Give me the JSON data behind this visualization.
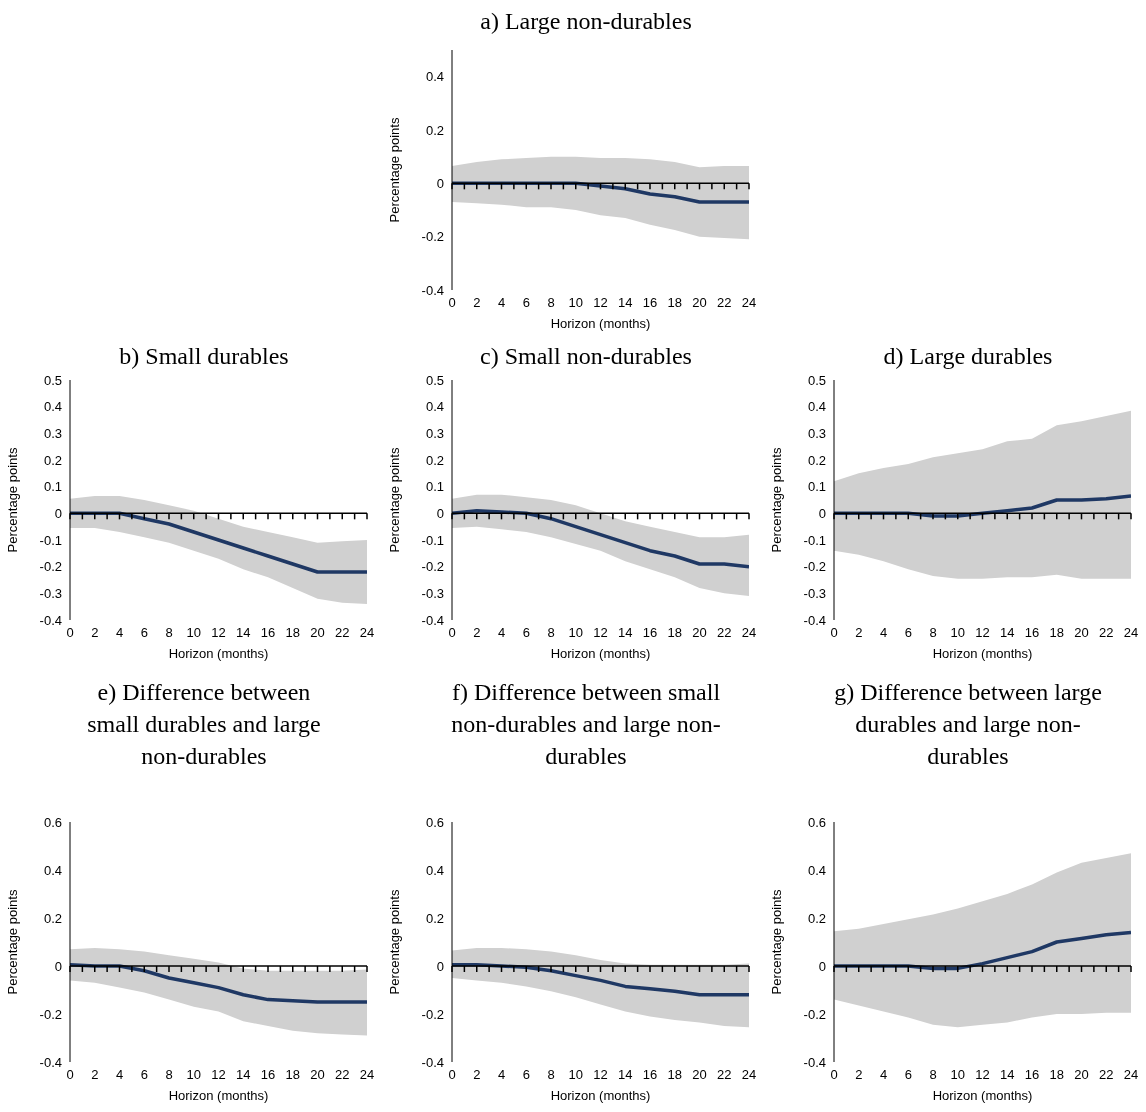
{
  "chart_data": [
    {
      "type": "line",
      "title": "a) Large non-durables",
      "xlabel": "Horizon (months)",
      "ylabel": "Percentage points",
      "x": [
        0,
        2,
        4,
        6,
        8,
        10,
        12,
        14,
        16,
        18,
        20,
        22,
        24
      ],
      "xlim": [
        0,
        24
      ],
      "xticks": [
        0,
        {
          "value": 1,
          "label": null
        },
        2,
        {
          "value": 3,
          "label": null
        },
        4,
        {
          "value": 5,
          "label": null
        },
        6,
        {
          "value": 7,
          "label": null
        },
        8,
        {
          "value": 9,
          "label": null
        },
        10,
        {
          "value": 11,
          "label": null
        },
        12,
        {
          "value": 13,
          "label": null
        },
        14,
        {
          "value": 15,
          "label": null
        },
        16,
        {
          "value": 17,
          "label": null
        },
        18,
        {
          "value": 19,
          "label": null
        },
        20,
        {
          "value": 21,
          "label": null
        },
        22,
        {
          "value": 23,
          "label": null
        },
        24
      ],
      "ylim": [
        -0.4,
        0.5
      ],
      "yticks": [
        -0.4,
        -0.2,
        0,
        0.2,
        0.4
      ],
      "series": [
        {
          "color": "#1f3864",
          "values": [
            0,
            0,
            0,
            0,
            0,
            0,
            -0.01,
            -0.02,
            -0.04,
            -0.05,
            -0.07,
            -0.07,
            -0.07
          ],
          "lower": [
            -0.07,
            -0.075,
            -0.08,
            -0.09,
            -0.09,
            -0.1,
            -0.12,
            -0.13,
            -0.155,
            -0.175,
            -0.2,
            -0.205,
            -0.21
          ],
          "upper": [
            0.065,
            0.08,
            0.09,
            0.095,
            0.1,
            0.1,
            0.095,
            0.095,
            0.09,
            0.08,
            0.06,
            0.065,
            0.065
          ]
        }
      ]
    },
    {
      "type": "line",
      "title": "b) Small durables",
      "xlabel": "Horizon (months)",
      "ylabel": "Percentage points",
      "x": [
        0,
        2,
        4,
        6,
        8,
        10,
        12,
        14,
        16,
        18,
        20,
        22,
        24
      ],
      "xlim": [
        0,
        24
      ],
      "xticks": [
        0,
        {
          "value": 1,
          "label": null
        },
        2,
        {
          "value": 3,
          "label": null
        },
        4,
        {
          "value": 5,
          "label": null
        },
        6,
        {
          "value": 7,
          "label": null
        },
        8,
        {
          "value": 9,
          "label": null
        },
        10,
        {
          "value": 11,
          "label": null
        },
        12,
        {
          "value": 13,
          "label": null
        },
        14,
        {
          "value": 15,
          "label": null
        },
        16,
        {
          "value": 17,
          "label": null
        },
        18,
        {
          "value": 19,
          "label": null
        },
        20,
        {
          "value": 21,
          "label": null
        },
        22,
        {
          "value": 23,
          "label": null
        },
        24
      ],
      "ylim": [
        -0.4,
        0.5
      ],
      "yticks": [
        -0.4,
        -0.3,
        -0.2,
        -0.1,
        0,
        0.1,
        0.2,
        0.3,
        0.4,
        0.5
      ],
      "series": [
        {
          "color": "#1f3864",
          "values": [
            0,
            0,
            0,
            -0.02,
            -0.04,
            -0.07,
            -0.1,
            -0.13,
            -0.16,
            -0.19,
            -0.22,
            -0.22,
            -0.22
          ],
          "lower": [
            -0.055,
            -0.055,
            -0.07,
            -0.09,
            -0.11,
            -0.14,
            -0.17,
            -0.21,
            -0.24,
            -0.28,
            -0.32,
            -0.335,
            -0.34
          ],
          "upper": [
            0.055,
            0.065,
            0.065,
            0.05,
            0.03,
            0.01,
            -0.02,
            -0.05,
            -0.07,
            -0.09,
            -0.11,
            -0.105,
            -0.1
          ]
        }
      ]
    },
    {
      "type": "line",
      "title": "c) Small non-durables",
      "xlabel": "Horizon (months)",
      "ylabel": "Percentage points",
      "x": [
        0,
        2,
        4,
        6,
        8,
        10,
        12,
        14,
        16,
        18,
        20,
        22,
        24
      ],
      "xlim": [
        0,
        24
      ],
      "xticks": [
        0,
        {
          "value": 1,
          "label": null
        },
        2,
        {
          "value": 3,
          "label": null
        },
        4,
        {
          "value": 5,
          "label": null
        },
        6,
        {
          "value": 7,
          "label": null
        },
        8,
        {
          "value": 9,
          "label": null
        },
        10,
        {
          "value": 11,
          "label": null
        },
        12,
        {
          "value": 13,
          "label": null
        },
        14,
        {
          "value": 15,
          "label": null
        },
        16,
        {
          "value": 17,
          "label": null
        },
        18,
        {
          "value": 19,
          "label": null
        },
        20,
        {
          "value": 21,
          "label": null
        },
        22,
        {
          "value": 23,
          "label": null
        },
        24
      ],
      "ylim": [
        -0.4,
        0.5
      ],
      "yticks": [
        -0.4,
        -0.3,
        -0.2,
        -0.1,
        0,
        0.1,
        0.2,
        0.3,
        0.4,
        0.5
      ],
      "series": [
        {
          "color": "#1f3864",
          "values": [
            0,
            0.01,
            0.005,
            0,
            -0.02,
            -0.05,
            -0.08,
            -0.11,
            -0.14,
            -0.16,
            -0.19,
            -0.19,
            -0.2
          ],
          "lower": [
            -0.055,
            -0.05,
            -0.06,
            -0.07,
            -0.09,
            -0.115,
            -0.14,
            -0.18,
            -0.21,
            -0.24,
            -0.28,
            -0.3,
            -0.31
          ],
          "upper": [
            0.055,
            0.07,
            0.07,
            0.06,
            0.05,
            0.03,
            0,
            -0.03,
            -0.05,
            -0.07,
            -0.09,
            -0.09,
            -0.08
          ]
        }
      ]
    },
    {
      "type": "line",
      "title": "d) Large durables",
      "xlabel": "Horizon (months)",
      "ylabel": "Percentage points",
      "x": [
        0,
        2,
        4,
        6,
        8,
        10,
        12,
        14,
        16,
        18,
        20,
        22,
        24
      ],
      "xlim": [
        0,
        24
      ],
      "xticks": [
        0,
        {
          "value": 1,
          "label": null
        },
        2,
        {
          "value": 3,
          "label": null
        },
        4,
        {
          "value": 5,
          "label": null
        },
        6,
        {
          "value": 7,
          "label": null
        },
        8,
        {
          "value": 9,
          "label": null
        },
        10,
        {
          "value": 11,
          "label": null
        },
        12,
        {
          "value": 13,
          "label": null
        },
        14,
        {
          "value": 15,
          "label": null
        },
        16,
        {
          "value": 17,
          "label": null
        },
        18,
        {
          "value": 19,
          "label": null
        },
        20,
        {
          "value": 21,
          "label": null
        },
        22,
        {
          "value": 23,
          "label": null
        },
        24
      ],
      "ylim": [
        -0.4,
        0.5
      ],
      "yticks": [
        -0.4,
        -0.3,
        -0.2,
        -0.1,
        0,
        0.1,
        0.2,
        0.3,
        0.4,
        0.5
      ],
      "series": [
        {
          "color": "#1f3864",
          "values": [
            0,
            0,
            0,
            0,
            -0.01,
            -0.01,
            0,
            0.01,
            0.02,
            0.05,
            0.05,
            0.055,
            0.065
          ],
          "lower": [
            -0.14,
            -0.155,
            -0.18,
            -0.21,
            -0.235,
            -0.245,
            -0.245,
            -0.24,
            -0.24,
            -0.23,
            -0.245,
            -0.245,
            -0.245
          ],
          "upper": [
            0.12,
            0.15,
            0.17,
            0.185,
            0.21,
            0.225,
            0.24,
            0.27,
            0.28,
            0.33,
            0.345,
            0.365,
            0.385
          ]
        }
      ]
    },
    {
      "type": "line",
      "title": "e) Difference between small durables and large non-durables",
      "xlabel": "Horizon (months)",
      "ylabel": "Percentage points",
      "x": [
        0,
        2,
        4,
        6,
        8,
        10,
        12,
        14,
        16,
        18,
        20,
        22,
        24
      ],
      "xlim": [
        0,
        24
      ],
      "xticks": [
        0,
        {
          "value": 1,
          "label": null
        },
        2,
        {
          "value": 3,
          "label": null
        },
        4,
        {
          "value": 5,
          "label": null
        },
        6,
        {
          "value": 7,
          "label": null
        },
        8,
        {
          "value": 9,
          "label": null
        },
        10,
        {
          "value": 11,
          "label": null
        },
        12,
        {
          "value": 13,
          "label": null
        },
        14,
        {
          "value": 15,
          "label": null
        },
        16,
        {
          "value": 17,
          "label": null
        },
        18,
        {
          "value": 19,
          "label": null
        },
        20,
        {
          "value": 21,
          "label": null
        },
        22,
        {
          "value": 23,
          "label": null
        },
        24
      ],
      "ylim": [
        -0.4,
        0.6
      ],
      "yticks": [
        -0.4,
        -0.2,
        0,
        0.2,
        0.4,
        0.6
      ],
      "series": [
        {
          "color": "#1f3864",
          "values": [
            0.005,
            0,
            0,
            -0.02,
            -0.05,
            -0.07,
            -0.09,
            -0.12,
            -0.14,
            -0.145,
            -0.15,
            -0.15,
            -0.15
          ],
          "lower": [
            -0.06,
            -0.07,
            -0.09,
            -0.11,
            -0.14,
            -0.17,
            -0.19,
            -0.23,
            -0.25,
            -0.27,
            -0.28,
            -0.285,
            -0.29
          ],
          "upper": [
            0.07,
            0.075,
            0.07,
            0.06,
            0.045,
            0.03,
            0.015,
            -0.01,
            -0.02,
            -0.02,
            -0.02,
            -0.02,
            -0.015
          ]
        }
      ]
    },
    {
      "type": "line",
      "title": "f) Difference between small non-durables and large non-durables",
      "xlabel": "Horizon (months)",
      "ylabel": "Percentage points",
      "x": [
        0,
        2,
        4,
        6,
        8,
        10,
        12,
        14,
        16,
        18,
        20,
        22,
        24
      ],
      "xlim": [
        0,
        24
      ],
      "xticks": [
        0,
        {
          "value": 1,
          "label": null
        },
        2,
        {
          "value": 3,
          "label": null
        },
        4,
        {
          "value": 5,
          "label": null
        },
        6,
        {
          "value": 7,
          "label": null
        },
        8,
        {
          "value": 9,
          "label": null
        },
        10,
        {
          "value": 11,
          "label": null
        },
        12,
        {
          "value": 13,
          "label": null
        },
        14,
        {
          "value": 15,
          "label": null
        },
        16,
        {
          "value": 17,
          "label": null
        },
        18,
        {
          "value": 19,
          "label": null
        },
        20,
        {
          "value": 21,
          "label": null
        },
        22,
        {
          "value": 23,
          "label": null
        },
        24
      ],
      "ylim": [
        -0.4,
        0.6
      ],
      "yticks": [
        -0.4,
        -0.2,
        0,
        0.2,
        0.4,
        0.6
      ],
      "series": [
        {
          "color": "#1f3864",
          "values": [
            0.005,
            0.005,
            0,
            -0.005,
            -0.02,
            -0.04,
            -0.06,
            -0.085,
            -0.095,
            -0.105,
            -0.12,
            -0.12,
            -0.12
          ],
          "lower": [
            -0.05,
            -0.06,
            -0.07,
            -0.085,
            -0.105,
            -0.13,
            -0.16,
            -0.19,
            -0.21,
            -0.225,
            -0.235,
            -0.25,
            -0.255
          ],
          "upper": [
            0.065,
            0.075,
            0.075,
            0.07,
            0.06,
            0.045,
            0.025,
            0.01,
            0.005,
            0.005,
            0.005,
            0.005,
            0.01
          ]
        }
      ]
    },
    {
      "type": "line",
      "title": "g) Difference between large durables and large non-durables",
      "xlabel": "Horizon (months)",
      "ylabel": "Percentage points",
      "x": [
        0,
        2,
        4,
        6,
        8,
        10,
        12,
        14,
        16,
        18,
        20,
        22,
        24
      ],
      "xlim": [
        0,
        24
      ],
      "xticks": [
        0,
        {
          "value": 1,
          "label": null
        },
        2,
        {
          "value": 3,
          "label": null
        },
        4,
        {
          "value": 5,
          "label": null
        },
        6,
        {
          "value": 7,
          "label": null
        },
        8,
        {
          "value": 9,
          "label": null
        },
        10,
        {
          "value": 11,
          "label": null
        },
        12,
        {
          "value": 13,
          "label": null
        },
        14,
        {
          "value": 15,
          "label": null
        },
        16,
        {
          "value": 17,
          "label": null
        },
        18,
        {
          "value": 19,
          "label": null
        },
        20,
        {
          "value": 21,
          "label": null
        },
        22,
        {
          "value": 23,
          "label": null
        },
        24
      ],
      "ylim": [
        -0.4,
        0.6
      ],
      "yticks": [
        -0.4,
        -0.2,
        0,
        0.2,
        0.4,
        0.6
      ],
      "series": [
        {
          "color": "#1f3864",
          "values": [
            0,
            0,
            0,
            0,
            -0.01,
            -0.01,
            0.01,
            0.035,
            0.06,
            0.1,
            0.115,
            0.13,
            0.14
          ],
          "lower": [
            -0.14,
            -0.165,
            -0.19,
            -0.215,
            -0.245,
            -0.255,
            -0.245,
            -0.235,
            -0.215,
            -0.2,
            -0.2,
            -0.195,
            -0.195
          ],
          "upper": [
            0.145,
            0.155,
            0.175,
            0.195,
            0.215,
            0.24,
            0.27,
            0.3,
            0.34,
            0.39,
            0.43,
            0.45,
            0.47
          ]
        }
      ]
    }
  ]
}
